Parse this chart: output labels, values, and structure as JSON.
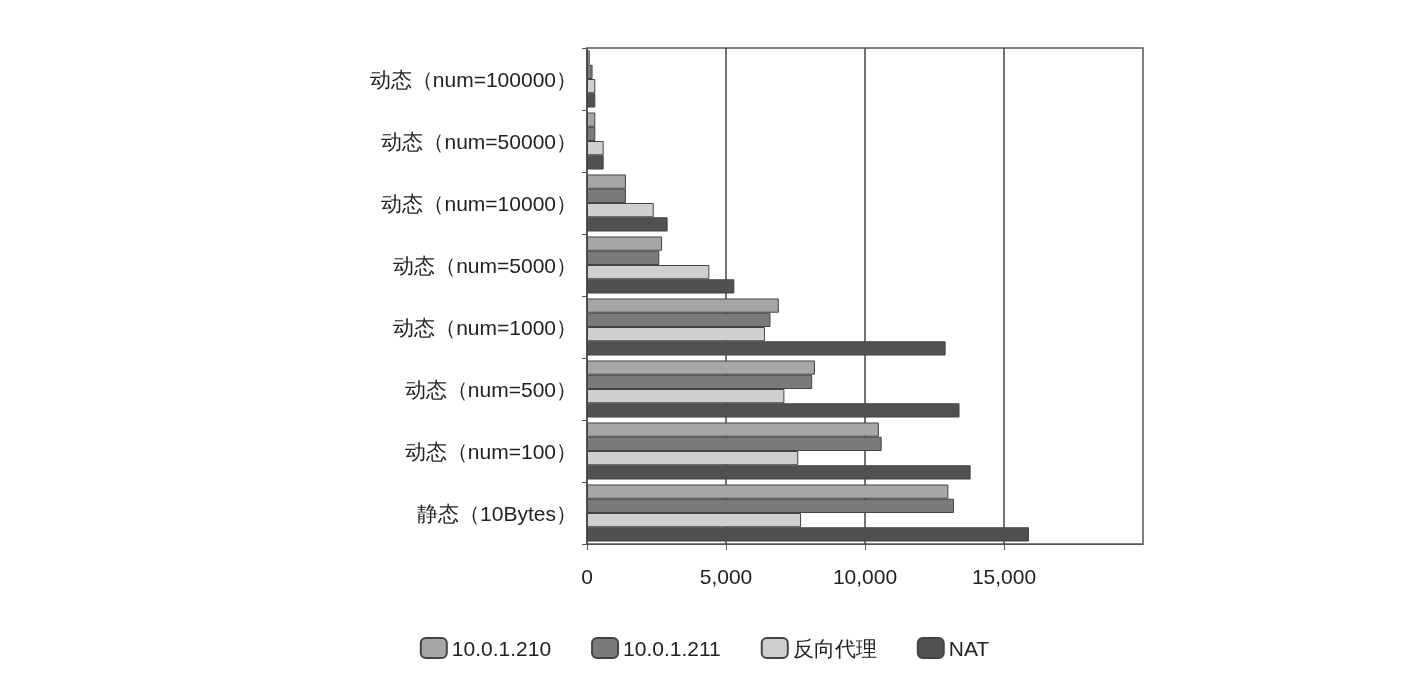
{
  "chart_data": {
    "type": "bar",
    "orientation": "horizontal",
    "categories": [
      "动态（num=100000）",
      "动态（num=50000）",
      "动态（num=10000）",
      "动态（num=5000）",
      "动态（num=1000）",
      "动态（num=500）",
      "动态（num=100）",
      "静态（10Bytes）"
    ],
    "series": [
      {
        "name": "10.0.1.210",
        "color": "#a6a6a6",
        "values": [
          100,
          300,
          1400,
          2700,
          6900,
          8200,
          10500,
          13000
        ]
      },
      {
        "name": "10.0.1.211",
        "color": "#7a7a7a",
        "values": [
          200,
          300,
          1400,
          2600,
          6600,
          8100,
          10600,
          13200
        ]
      },
      {
        "name": "反向代理",
        "color": "#cfcfcf",
        "values": [
          300,
          600,
          2400,
          4400,
          6400,
          7100,
          7600,
          7700
        ]
      },
      {
        "name": "NAT",
        "color": "#505050",
        "values": [
          300,
          600,
          2900,
          5300,
          12900,
          13400,
          13800,
          15900
        ]
      }
    ],
    "xlim": [
      0,
      20000
    ],
    "xticks": [
      0,
      {
        "value": 5000,
        "label": "5,000"
      },
      {
        "value": 10000,
        "label": "10,000"
      },
      {
        "value": 15000,
        "label": "15,000"
      }
    ],
    "grid": "x",
    "legend": "bottom"
  }
}
